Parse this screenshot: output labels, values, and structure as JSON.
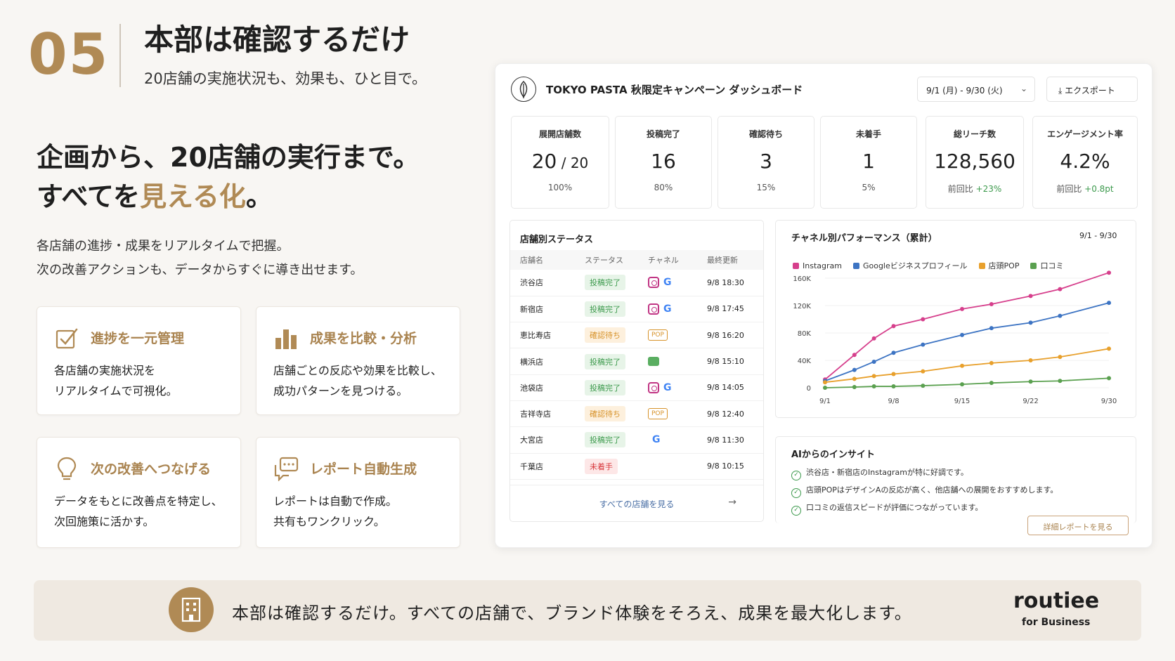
{
  "header": {
    "number": "05",
    "title": "本部は確認するだけ",
    "subtitle": "20店舗の実施状況も、効果も、ひと目で。"
  },
  "headline": {
    "line1": "企画から、20店舗の実行まで。",
    "line2_pre": "すべてを",
    "line2_accent": "見える化",
    "line2_post": "。"
  },
  "description": {
    "line1": "各店舗の進捗・成果をリアルタイムで把握。",
    "line2": "次の改善アクションも、データからすぐに導き出せます。"
  },
  "features": [
    {
      "icon": "checklist-icon",
      "title": "進捗を一元管理",
      "line1": "各店舗の実施状況を",
      "line2": "リアルタイムで可視化。"
    },
    {
      "icon": "bar-chart-icon",
      "title": "成果を比較・分析",
      "line1": "店舗ごとの反応や効果を比較し、",
      "line2": "成功パターンを見つける。"
    },
    {
      "icon": "lightbulb-icon",
      "title": "次の改善へつなげる",
      "line1": "データをもとに改善点を特定し、",
      "line2": "次回施策に活かす。"
    },
    {
      "icon": "report-chat-icon",
      "title": "レポート自動生成",
      "line1": "レポートは自動で作成。",
      "line2": "共有もワンクリック。"
    }
  ],
  "dashboard": {
    "title": "TOKYO PASTA 秋限定キャンペーン ダッシュボード",
    "date_range": "9/1 (月) - 9/30 (火)",
    "export_label": "エクスポート",
    "kpis": [
      {
        "label": "展開店舗数",
        "value": "20",
        "value_suffix": " / 20",
        "sub_prefix": "",
        "sub": "100%",
        "color": "#1f1f1f"
      },
      {
        "label": "投稿完了",
        "value": "16",
        "value_suffix": "",
        "sub_prefix": "",
        "sub": "80%",
        "color": "#3d9a4d"
      },
      {
        "label": "確認待ち",
        "value": "3",
        "value_suffix": "",
        "sub_prefix": "",
        "sub": "15%",
        "color": "#e59b2a"
      },
      {
        "label": "未着手",
        "value": "1",
        "value_suffix": "",
        "sub_prefix": "",
        "sub": "5%",
        "color": "#d8383d"
      },
      {
        "label": "総リーチ数",
        "value": "128,560",
        "value_suffix": "",
        "sub_prefix": "前回比 ",
        "sub": "+23%",
        "color": "#1f1f1f"
      },
      {
        "label": "エンゲージメント率",
        "value": "4.2%",
        "value_suffix": "",
        "sub_prefix": "前回比 ",
        "sub": "+0.8pt",
        "color": "#1f1f1f"
      }
    ],
    "store_status": {
      "title": "店舗別ステータス",
      "headers": [
        "店舗名",
        "ステータス",
        "チャネル",
        "最終更新"
      ],
      "rows": [
        {
          "store": "渋谷店",
          "status": "投稿完了",
          "kind": "done",
          "channels": [
            "instagram",
            "google"
          ],
          "updated": "9/8 18:30"
        },
        {
          "store": "新宿店",
          "status": "投稿完了",
          "kind": "done",
          "channels": [
            "instagram",
            "google"
          ],
          "updated": "9/8 17:45"
        },
        {
          "store": "恵比寿店",
          "status": "確認待ち",
          "kind": "wait",
          "channels": [
            "pop"
          ],
          "updated": "9/8 16:20"
        },
        {
          "store": "横浜店",
          "status": "投稿完了",
          "kind": "done",
          "channels": [
            "kuchikomi"
          ],
          "updated": "9/8 15:10"
        },
        {
          "store": "池袋店",
          "status": "投稿完了",
          "kind": "done",
          "channels": [
            "instagram",
            "google"
          ],
          "updated": "9/8 14:05"
        },
        {
          "store": "吉祥寺店",
          "status": "確認待ち",
          "kind": "wait",
          "channels": [
            "pop"
          ],
          "updated": "9/8 12:40"
        },
        {
          "store": "大宮店",
          "status": "投稿完了",
          "kind": "done",
          "channels": [
            "google"
          ],
          "updated": "9/8 11:30"
        },
        {
          "store": "千葉店",
          "status": "未着手",
          "kind": "none",
          "channels": [],
          "updated": "9/8 10:15"
        }
      ],
      "see_all": "すべての店舗を見る",
      "pop_label": "POP",
      "google_label": "G"
    },
    "channel_perf": {
      "title": "チャネル別パフォーマンス（累計）",
      "range": "9/1 - 9/30"
    },
    "insights": {
      "title": "AIからのインサイト",
      "items": [
        "渋谷店・新宿店のInstagramが特に好調です。",
        "店頭POPはデザインAの反応が高く、他店舗への展開をおすすめします。",
        "口コミの返信スピードが評価につながっています。"
      ],
      "button": "詳細レポートを見る"
    }
  },
  "chart_data": {
    "type": "line",
    "title": "チャネル別パフォーマンス（累計）",
    "x": [
      "9/1",
      "9/4",
      "9/6",
      "9/8",
      "9/11",
      "9/15",
      "9/18",
      "9/22",
      "9/25",
      "9/30"
    ],
    "x_ticks": [
      "9/1",
      "9/8",
      "9/15",
      "9/22",
      "9/30"
    ],
    "y_ticks": [
      "0",
      "40K",
      "80K",
      "120K",
      "160K"
    ],
    "ylim": [
      0,
      160000
    ],
    "series": [
      {
        "name": "Instagram",
        "color": "#d63f8c",
        "values": [
          12000,
          48000,
          72000,
          90000,
          100000,
          115000,
          122000,
          134000,
          144000,
          168000
        ]
      },
      {
        "name": "Googleビジネスプロフィール",
        "color": "#3d74c3",
        "values": [
          10000,
          26000,
          38000,
          51000,
          63000,
          77000,
          87000,
          95000,
          105000,
          124000
        ]
      },
      {
        "name": "店頭POP",
        "color": "#e8a02c",
        "values": [
          8000,
          13000,
          17000,
          20000,
          24000,
          32000,
          36000,
          40000,
          45000,
          57000
        ]
      },
      {
        "name": "口コミ",
        "color": "#5aa04f",
        "values": [
          0,
          1000,
          2000,
          2000,
          3000,
          5000,
          7000,
          9000,
          10000,
          14000
        ]
      }
    ]
  },
  "footer": {
    "text": "本部は確認するだけ。すべての店舗で、ブランド体験をそろえ、成果を最大化します。",
    "brand": "routiee",
    "brand_sub": "for Business"
  }
}
